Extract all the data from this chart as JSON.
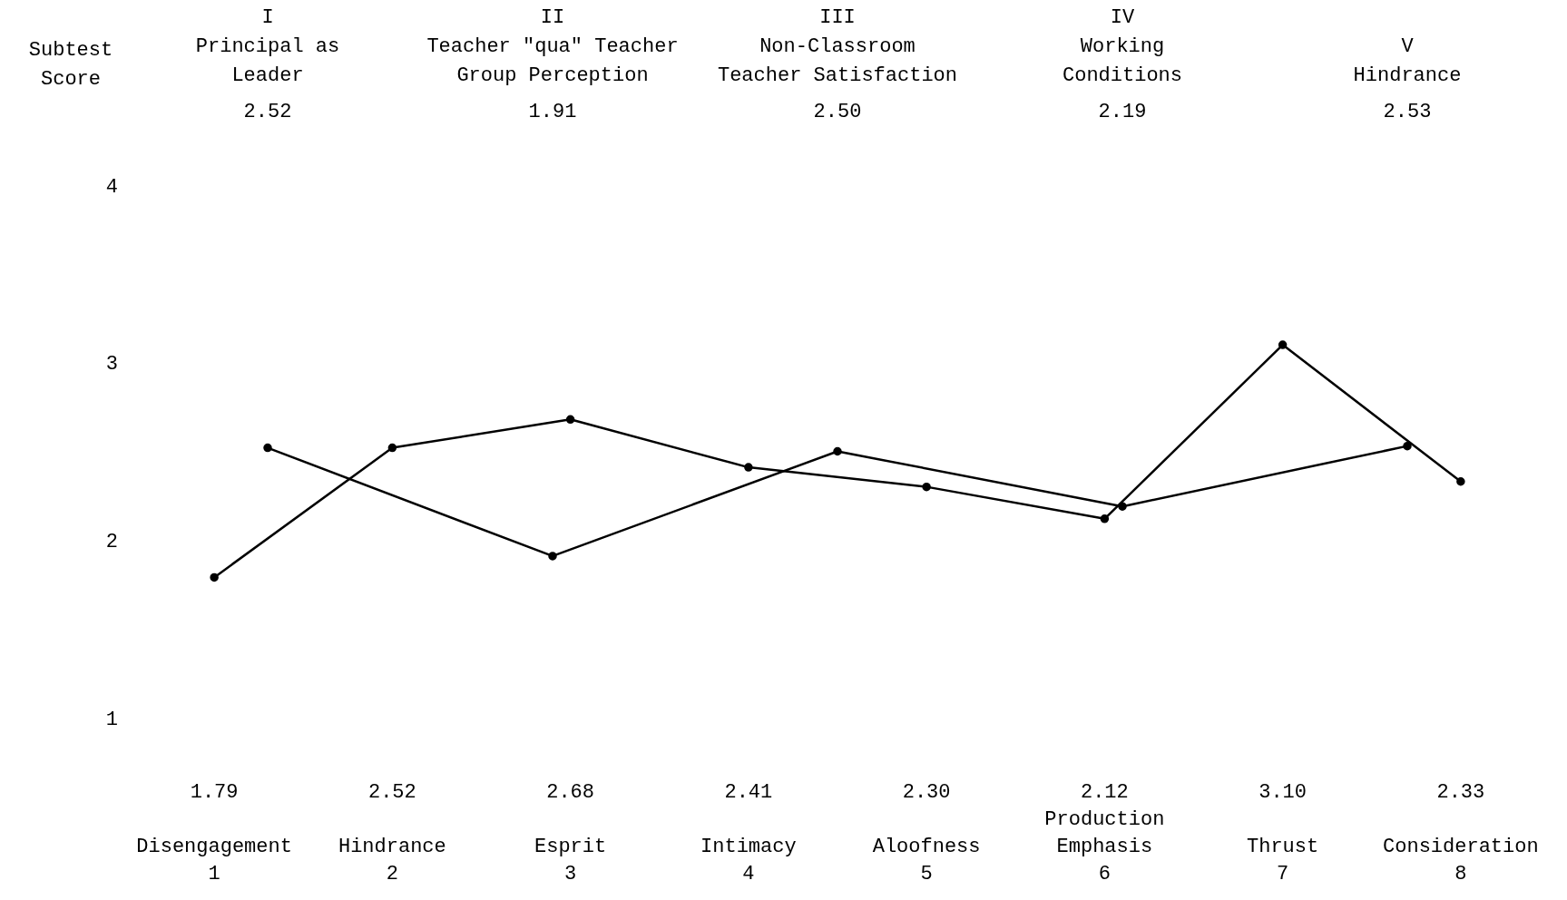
{
  "chart_data": [
    {
      "type": "line",
      "ylabel": "Subtest Score",
      "categories": [
        "Disengagement\n1",
        "Hindrance\n2",
        "Esprit\n3",
        "Intimacy\n4",
        "Aloofness\n5",
        "Production\nEmphasis\n6",
        "Thrust\n7",
        "Consideration\n8"
      ],
      "values": [
        1.79,
        2.52,
        2.68,
        2.41,
        2.3,
        2.12,
        3.1,
        2.33
      ],
      "value_labels": [
        "1.79",
        "2.52",
        "2.68",
        "2.41",
        "2.30",
        "2.12",
        "3.10",
        "2.33"
      ],
      "color": "#000000",
      "ylim": [
        1,
        4
      ],
      "yticks": [
        1,
        2,
        3,
        4
      ],
      "marker": "circle",
      "line_style": "solid"
    },
    {
      "type": "line",
      "categories": [
        "I\nPrincipal as\nLeader",
        "II\nTeacher \"qua\" Teacher\nGroup Perception",
        "III\nNon-Classroom\nTeacher Satisfaction",
        "IV\nWorking\nConditions",
        "V\nHindrance"
      ],
      "values": [
        2.52,
        1.91,
        2.5,
        2.19,
        2.53
      ],
      "value_labels": [
        "2.52",
        "1.91",
        "2.50",
        "2.19",
        "2.53"
      ],
      "color": "#000000",
      "ylim": [
        1,
        4
      ],
      "yticks": [
        1,
        2,
        3,
        4
      ],
      "tick_labels": "x",
      "marker": "circle",
      "line_style": "solid"
    }
  ]
}
